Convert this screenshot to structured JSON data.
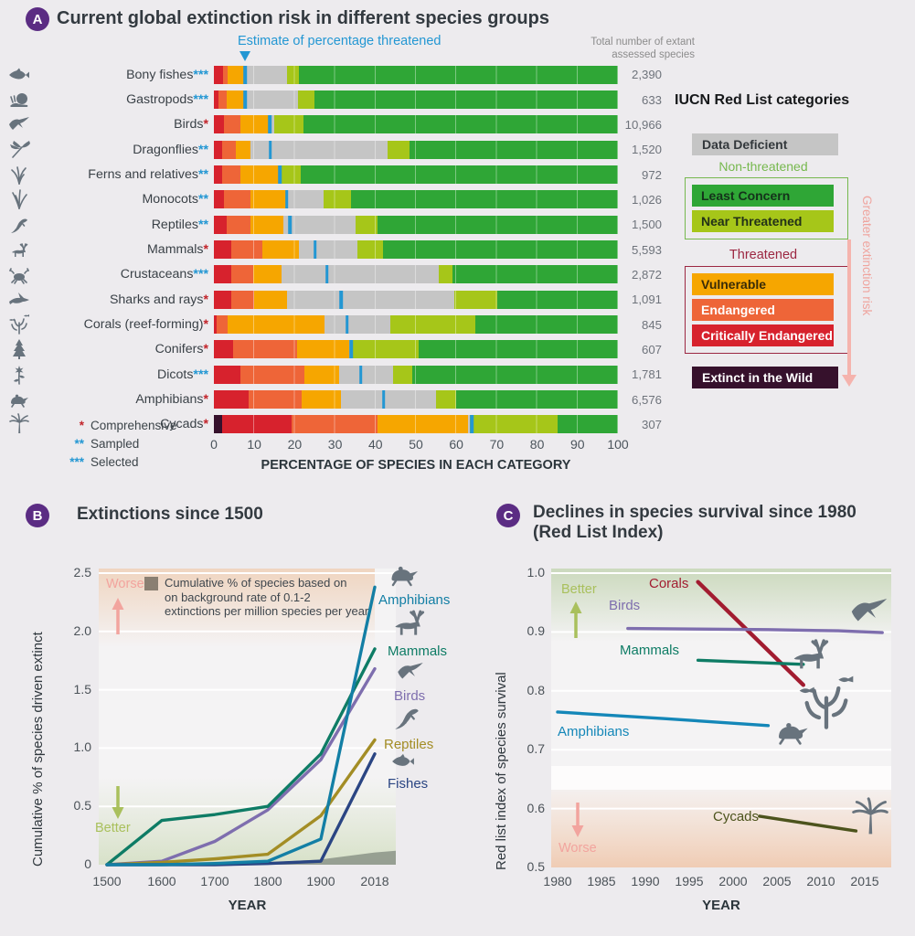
{
  "colors": {
    "estimate_blue": "#2397d3",
    "badge_purple": "#5b2c83",
    "icon_gray": "#68737d",
    "worse_pink": "#f2a49e",
    "better_green": "#a9c05c",
    "risk_arrow_pink": "#f5b3ad",
    "category": {
      "EW": "#36112c",
      "CR": "#d7222d",
      "EN": "#ee6538",
      "VU": "#f6a600",
      "DD": "#c5c5c5",
      "NT": "#a6c619",
      "LC": "#2fa636"
    }
  },
  "panelA": {
    "badge": "A",
    "title": "Current global extinction risk in different species groups",
    "estimate_label": "Estimate of percentage threatened",
    "total_header": {
      "line1": "Total number of extant",
      "line2": "assessed species"
    },
    "footnotes": [
      {
        "stars": "*",
        "label": "Comprehensive",
        "star_color": "#c2252b"
      },
      {
        "stars": "**",
        "label": "Sampled",
        "star_color": "#2397d3"
      },
      {
        "stars": "***",
        "label": "Selected",
        "star_color": "#2397d3"
      }
    ],
    "legend": {
      "title": "IUCN Red List categories",
      "dd": {
        "label": "Data Deficient",
        "color": "#c5c5c5",
        "text_color": "#33383c"
      },
      "non_threatened_label": "Non-threatened",
      "non_threatened_color": "#76b84e",
      "non_threatened_items": [
        {
          "label": "Least Concern",
          "color": "#2fa636",
          "text_color": "#14321a"
        },
        {
          "label": "Near Threatened",
          "color": "#a6c619",
          "text_color": "#233118"
        }
      ],
      "threatened_label": "Threatened",
      "threatened_color": "#9c2742",
      "threatened_items": [
        {
          "label": "Vulnerable",
          "color": "#f6a600",
          "text_color": "#3a2c07"
        },
        {
          "label": "Endangered",
          "color": "#ee6538",
          "text_color": "#ffffff"
        },
        {
          "label": "Critically Endangered",
          "color": "#d7222d",
          "text_color": "#ffffff"
        }
      ],
      "ew": {
        "label": "Extinct in the Wild",
        "color": "#36112c",
        "text_color": "#ffffff"
      },
      "risk_arrow_label": "Greater extinction risk",
      "risk_arrow_text_color": "#efa49e"
    }
  },
  "panelB": {
    "badge": "B",
    "title": "Extinctions since 1500"
  },
  "panelC": {
    "badge": "C",
    "title_line1": "Declines in species survival since 1980",
    "title_line2": "(Red List Index)"
  },
  "chart_data": [
    {
      "id": "A",
      "type": "stacked-bar",
      "title": "Current global extinction risk in different species groups",
      "xlabel": "PERCENTAGE OF SPECIES IN EACH CATEGORY",
      "xticks": [
        0,
        10,
        20,
        30,
        40,
        50,
        60,
        70,
        80,
        90,
        100
      ],
      "segment_order": [
        "EW",
        "CR",
        "EN",
        "VU",
        "DD",
        "NT",
        "LC"
      ],
      "rows": [
        {
          "label": "Bony fishes",
          "stars": "***",
          "star_color": "#2397d3",
          "icon": "fish-icon",
          "total": "2,390",
          "estimate": 7.7,
          "segments": {
            "EW": 0,
            "CR": 2.3,
            "EN": 1.2,
            "VU": 4.2,
            "DD": 10.3,
            "NT": 3.0,
            "LC": 79.0
          }
        },
        {
          "label": "Gastropods",
          "stars": "***",
          "star_color": "#2397d3",
          "icon": "snail-icon",
          "total": "633",
          "estimate": 7.8,
          "segments": {
            "EW": 0,
            "CR": 1.2,
            "EN": 2.0,
            "VU": 4.6,
            "DD": 13.0,
            "NT": 4.2,
            "LC": 75.0
          }
        },
        {
          "label": "Birds",
          "stars": "*",
          "star_color": "#c2252b",
          "icon": "hummingbird-icon",
          "total": "10,966",
          "estimate": 13.8,
          "segments": {
            "EW": 0,
            "CR": 2.5,
            "EN": 4.0,
            "VU": 7.2,
            "DD": 1.2,
            "NT": 7.3,
            "LC": 77.8
          }
        },
        {
          "label": "Dragonflies",
          "stars": "**",
          "star_color": "#2397d3",
          "icon": "dragonfly-icon",
          "total": "1,520",
          "estimate": 14.0,
          "segments": {
            "EW": 0,
            "CR": 2.1,
            "EN": 3.4,
            "VU": 3.6,
            "DD": 33.9,
            "NT": 5.5,
            "LC": 51.5
          }
        },
        {
          "label": "Ferns and relatives",
          "stars": "**",
          "star_color": "#2397d3",
          "icon": "fern-icon",
          "total": "972",
          "estimate": 16.3,
          "segments": {
            "EW": 0,
            "CR": 2.0,
            "EN": 4.6,
            "VU": 9.6,
            "DD": 0.6,
            "NT": 4.8,
            "LC": 78.4
          }
        },
        {
          "label": "Monocots",
          "stars": "**",
          "star_color": "#2397d3",
          "icon": "grass-icon",
          "total": "1,026",
          "estimate": 18.0,
          "segments": {
            "EW": 0,
            "CR": 2.6,
            "EN": 6.4,
            "VU": 9.0,
            "DD": 9.2,
            "NT": 6.8,
            "LC": 66.0
          }
        },
        {
          "label": "Reptiles",
          "stars": "**",
          "star_color": "#2397d3",
          "icon": "lizard-icon",
          "total": "1,500",
          "estimate": 18.8,
          "segments": {
            "EW": 0,
            "CR": 3.1,
            "EN": 5.9,
            "VU": 8.2,
            "DD": 17.8,
            "NT": 5.4,
            "LC": 59.6
          }
        },
        {
          "label": "Mammals",
          "stars": "*",
          "star_color": "#c2252b",
          "icon": "deer-icon",
          "total": "5,593",
          "estimate": 25.0,
          "segments": {
            "EW": 0,
            "CR": 4.3,
            "EN": 7.6,
            "VU": 9.2,
            "DD": 14.4,
            "NT": 6.4,
            "LC": 58.1
          }
        },
        {
          "label": "Crustaceans",
          "stars": "***",
          "star_color": "#2397d3",
          "icon": "crab-icon",
          "total": "2,872",
          "estimate": 28.0,
          "segments": {
            "EW": 0,
            "CR": 4.4,
            "EN": 5.3,
            "VU": 7.1,
            "DD": 38.8,
            "NT": 3.4,
            "LC": 41.0
          }
        },
        {
          "label": "Sharks and rays",
          "stars": "*",
          "star_color": "#c2252b",
          "icon": "shark-icon",
          "total": "1,091",
          "estimate": 31.5,
          "segments": {
            "EW": 0,
            "CR": 4.4,
            "EN": 5.6,
            "VU": 8.1,
            "DD": 41.4,
            "NT": 10.6,
            "LC": 29.9
          }
        },
        {
          "label": "Corals (reef-forming)",
          "stars": "*",
          "star_color": "#c2252b",
          "icon": "coral-icon",
          "total": "845",
          "estimate": 33.0,
          "segments": {
            "EW": 0,
            "CR": 0.6,
            "EN": 2.8,
            "VU": 23.9,
            "DD": 16.3,
            "NT": 21.1,
            "LC": 35.3
          }
        },
        {
          "label": "Conifers",
          "stars": "*",
          "star_color": "#c2252b",
          "icon": "conifer-icon",
          "total": "607",
          "estimate": 34.0,
          "segments": {
            "EW": 0,
            "CR": 4.7,
            "EN": 15.9,
            "VU": 12.9,
            "DD": 0.6,
            "NT": 16.5,
            "LC": 49.4
          }
        },
        {
          "label": "Dicots",
          "stars": "***",
          "star_color": "#2397d3",
          "icon": "flower-icon",
          "total": "1,781",
          "estimate": 36.4,
          "segments": {
            "EW": 0,
            "CR": 6.6,
            "EN": 15.7,
            "VU": 8.8,
            "DD": 13.2,
            "NT": 4.7,
            "LC": 51.0
          }
        },
        {
          "label": "Amphibians",
          "stars": "*",
          "star_color": "#c2252b",
          "icon": "frog-icon",
          "total": "6,576",
          "estimate": 42.0,
          "segments": {
            "EW": 0,
            "CR": 8.6,
            "EN": 13.1,
            "VU": 9.7,
            "DD": 23.5,
            "NT": 5.1,
            "LC": 40.0
          }
        },
        {
          "label": "Cycads",
          "stars": "*",
          "star_color": "#c2252b",
          "icon": "palm-icon",
          "total": "307",
          "estimate": 63.8,
          "segments": {
            "EW": 2.0,
            "CR": 17.3,
            "EN": 21.2,
            "VU": 22.5,
            "DD": 0.4,
            "NT": 21.6,
            "LC": 15.0
          }
        }
      ]
    },
    {
      "id": "B",
      "type": "line",
      "title": "Extinctions since 1500",
      "xlabel": "YEAR",
      "ylabel": "Cumulative % of species driven extinct",
      "x": [
        1500,
        1600,
        1700,
        1800,
        1900,
        2018
      ],
      "yticks": [
        "2.5",
        "2.0",
        "1.5",
        "1.0",
        "0.5",
        "0"
      ],
      "ylim": [
        0,
        2.5
      ],
      "series": [
        {
          "name": "Birds",
          "color": "#7e6eae",
          "icon": "hummingbird-icon",
          "values": [
            0,
            0.03,
            0.2,
            0.47,
            0.9,
            1.68
          ]
        },
        {
          "name": "Mammals",
          "color": "#0e7c65",
          "icon": "deer-icon",
          "values": [
            0,
            0.38,
            0.43,
            0.5,
            0.95,
            1.85
          ]
        },
        {
          "name": "Reptiles",
          "color": "#a38d25",
          "icon": "lizard-icon",
          "values": [
            0,
            0.02,
            0.05,
            0.09,
            0.42,
            1.07
          ]
        },
        {
          "name": "Fishes",
          "color": "#2a4583",
          "icon": "fish-icon",
          "values": [
            0,
            0,
            0,
            0.01,
            0.03,
            0.95
          ]
        },
        {
          "name": "Amphibians",
          "color": "#137fa5",
          "icon": "frog-icon",
          "values": [
            0,
            0,
            0.01,
            0.03,
            0.22,
            2.38
          ]
        }
      ],
      "background_series": {
        "name": "Background extinction rate",
        "x": [
          1500,
          1800,
          1900,
          2018
        ],
        "values": [
          0.002,
          0.02,
          0.045,
          0.105
        ],
        "color": "#8f988c"
      },
      "annotations": {
        "worse": "Worse",
        "better": "Better",
        "legend_lines": [
          "Cumulative % of species based on",
          "on background rate of 0.1-2",
          "extinctions per million species per year"
        ]
      }
    },
    {
      "id": "C",
      "type": "line",
      "title": "Declines in species survival since 1980 (Red List Index)",
      "xlabel": "YEAR",
      "ylabel": "Red list index of species survival",
      "xticks": [
        1980,
        1985,
        1990,
        1995,
        2000,
        2005,
        2010,
        2015
      ],
      "yticks": [
        "1.0",
        "0.9",
        "0.8",
        "0.7",
        "0.6",
        "0.5"
      ],
      "ylim": [
        0.5,
        1.0
      ],
      "series": [
        {
          "name": "Corals",
          "color": "#a21c30",
          "icon": "coral-icon",
          "points": [
            [
              1996,
              0.985
            ],
            [
              2008,
              0.81
            ]
          ]
        },
        {
          "name": "Birds",
          "color": "#7e6eae",
          "icon": "hummingbird-icon",
          "points": [
            [
              1988,
              0.906
            ],
            [
              1996,
              0.905
            ],
            [
              2004,
              0.904
            ],
            [
              2012,
              0.902
            ],
            [
              2017,
              0.899
            ]
          ]
        },
        {
          "name": "Mammals",
          "color": "#0e7c65",
          "icon": "deer-icon",
          "points": [
            [
              1996,
              0.852
            ],
            [
              2008,
              0.845
            ]
          ]
        },
        {
          "name": "Amphibians",
          "color": "#1487b8",
          "icon": "frog-icon",
          "points": [
            [
              1980,
              0.764
            ],
            [
              1992,
              0.753
            ],
            [
              2004,
              0.741
            ]
          ]
        },
        {
          "name": "Cycads",
          "color": "#4c531c",
          "icon": "palm-icon",
          "points": [
            [
              2003,
              0.587
            ],
            [
              2014,
              0.562
            ]
          ]
        }
      ],
      "annotations": {
        "better": "Better",
        "worse": "Worse"
      }
    }
  ]
}
